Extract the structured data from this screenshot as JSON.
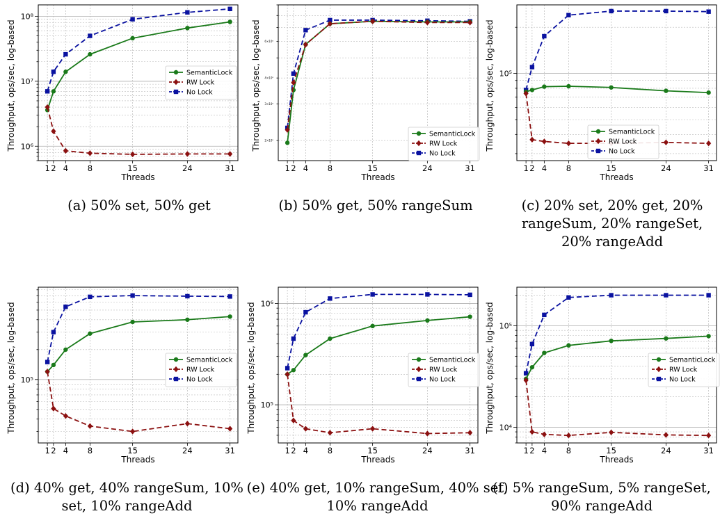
{
  "colors": {
    "semantic": "#1a7a1a",
    "rw": "#8b1010",
    "nolock": "#0a12a0",
    "grid": "#b9b9b9"
  },
  "captions": [
    "(a) 50% set, 50% get",
    "(b) 50% get, 50% rangeSum",
    "(c) 20% set, 20% get, 20% rangeSum, 20% rangeSet, 20% rangeAdd",
    "(d) 40% get, 40% rangeSum, 10% set, 10% rangeAdd",
    "(e) 40% get, 10% rangeSum, 40% set, 10% rangeAdd",
    "(f) 5% rangeSum, 5% rangeSet, 90% rangeAdd"
  ],
  "chart_data": [
    {
      "type": "line",
      "xlabel": "Threads",
      "ylabel": "Throughput, ops/sec, log-based",
      "yscale": "log",
      "x": [
        1,
        2,
        4,
        8,
        15,
        24,
        31
      ],
      "ylim": [
        600000,
        150000000
      ],
      "yticks": [
        1000000,
        10000000,
        100000000
      ],
      "ytick_labels": [
        "10⁶",
        "10⁷",
        "10⁸"
      ],
      "legend_position": "center-right",
      "grid": true,
      "series": [
        {
          "name": "SemanticLock",
          "values": [
            3600000,
            7000000,
            14000000,
            26000000,
            46000000,
            66000000,
            82000000
          ]
        },
        {
          "name": "RW Lock",
          "values": [
            4000000,
            1700000,
            850000,
            780000,
            750000,
            760000,
            760000
          ]
        },
        {
          "name": "No Lock",
          "values": [
            7000000,
            14000000,
            26000000,
            50000000,
            90000000,
            115000000,
            130000000
          ]
        }
      ]
    },
    {
      "type": "line",
      "xlabel": "Threads",
      "ylabel": "Throughput, ops/sec, log-based",
      "yscale": "log",
      "x": [
        1,
        2,
        4,
        8,
        15,
        24,
        31
      ],
      "ylim": [
        160000,
        900000
      ],
      "yticks": [
        200000,
        300000,
        400000,
        600000
      ],
      "ytick_labels": [
        "2×10⁵",
        "3×10⁵",
        "4×10⁵",
        "6×10⁵"
      ],
      "legend_position": "bottom-right",
      "grid": true,
      "series": [
        {
          "name": "SemanticLock",
          "values": [
            195000,
            350000,
            580000,
            730000,
            750000,
            745000,
            745000
          ]
        },
        {
          "name": "RW Lock",
          "values": [
            225000,
            380000,
            580000,
            730000,
            750000,
            740000,
            740000
          ]
        },
        {
          "name": "No Lock",
          "values": [
            230000,
            420000,
            680000,
            760000,
            760000,
            755000,
            750000
          ]
        }
      ]
    },
    {
      "type": "line",
      "xlabel": "Threads",
      "ylabel": "Throughput, ops/sec, log-based",
      "yscale": "log",
      "x": [
        1,
        2,
        4,
        8,
        15,
        24,
        31
      ],
      "ylim": [
        27000,
        280000
      ],
      "yticks": [
        100000
      ],
      "ytick_labels": [
        "10⁵"
      ],
      "legend_position": "bottom-center",
      "grid": true,
      "series": [
        {
          "name": "SemanticLock",
          "values": [
            76000,
            78000,
            82000,
            82500,
            81000,
            77000,
            75000
          ]
        },
        {
          "name": "RW Lock",
          "values": [
            74000,
            37000,
            36000,
            35000,
            35000,
            35500,
            35000
          ]
        },
        {
          "name": "No Lock",
          "values": [
            78000,
            110000,
            175000,
            240000,
            255000,
            255000,
            253000
          ]
        }
      ]
    },
    {
      "type": "line",
      "xlabel": "Threads",
      "ylabel": "Throughput, ops/sec, log-based",
      "yscale": "log",
      "x": [
        1,
        2,
        4,
        8,
        15,
        24,
        31
      ],
      "ylim": [
        23000,
        850000
      ],
      "yticks": [
        100000
      ],
      "ytick_labels": [
        "10⁵"
      ],
      "legend_position": "center-right",
      "grid": true,
      "series": [
        {
          "name": "SemanticLock",
          "values": [
            120000,
            140000,
            200000,
            290000,
            380000,
            400000,
            430000
          ]
        },
        {
          "name": "RW Lock",
          "values": [
            120000,
            51000,
            43000,
            34000,
            30000,
            36000,
            32000
          ]
        },
        {
          "name": "No Lock",
          "values": [
            150000,
            300000,
            540000,
            680000,
            700000,
            690000,
            685000
          ]
        }
      ]
    },
    {
      "type": "line",
      "xlabel": "Threads",
      "ylabel": "Throughput, ops/sec, log-based",
      "yscale": "log",
      "x": [
        1,
        2,
        4,
        8,
        15,
        24,
        31
      ],
      "ylim": [
        42000,
        1450000
      ],
      "yticks": [
        100000,
        1000000
      ],
      "ytick_labels": [
        "10⁵",
        "10⁶"
      ],
      "legend_position": "center-right",
      "grid": true,
      "series": [
        {
          "name": "SemanticLock",
          "values": [
            200000,
            220000,
            310000,
            450000,
            600000,
            680000,
            740000
          ]
        },
        {
          "name": "RW Lock",
          "values": [
            200000,
            70000,
            58000,
            53000,
            58000,
            52000,
            53000
          ]
        },
        {
          "name": "No Lock",
          "values": [
            230000,
            450000,
            820000,
            1120000,
            1230000,
            1230000,
            1220000
          ]
        }
      ]
    },
    {
      "type": "line",
      "xlabel": "Threads",
      "ylabel": "Throughput, ops/sec, log-based",
      "yscale": "log",
      "x": [
        1,
        2,
        4,
        8,
        15,
        24,
        31
      ],
      "ylim": [
        7000,
        240000
      ],
      "yticks": [
        10000,
        100000
      ],
      "ytick_labels": [
        "10⁴",
        "10⁵"
      ],
      "legend_position": "center-right",
      "grid": true,
      "series": [
        {
          "name": "SemanticLock",
          "values": [
            30000,
            39000,
            54000,
            64000,
            71000,
            75000,
            79000
          ]
        },
        {
          "name": "RW Lock",
          "values": [
            29000,
            9000,
            8500,
            8300,
            8900,
            8400,
            8300
          ]
        },
        {
          "name": "No Lock",
          "values": [
            34000,
            66000,
            128000,
            190000,
            200000,
            200000,
            200000
          ]
        }
      ]
    }
  ]
}
